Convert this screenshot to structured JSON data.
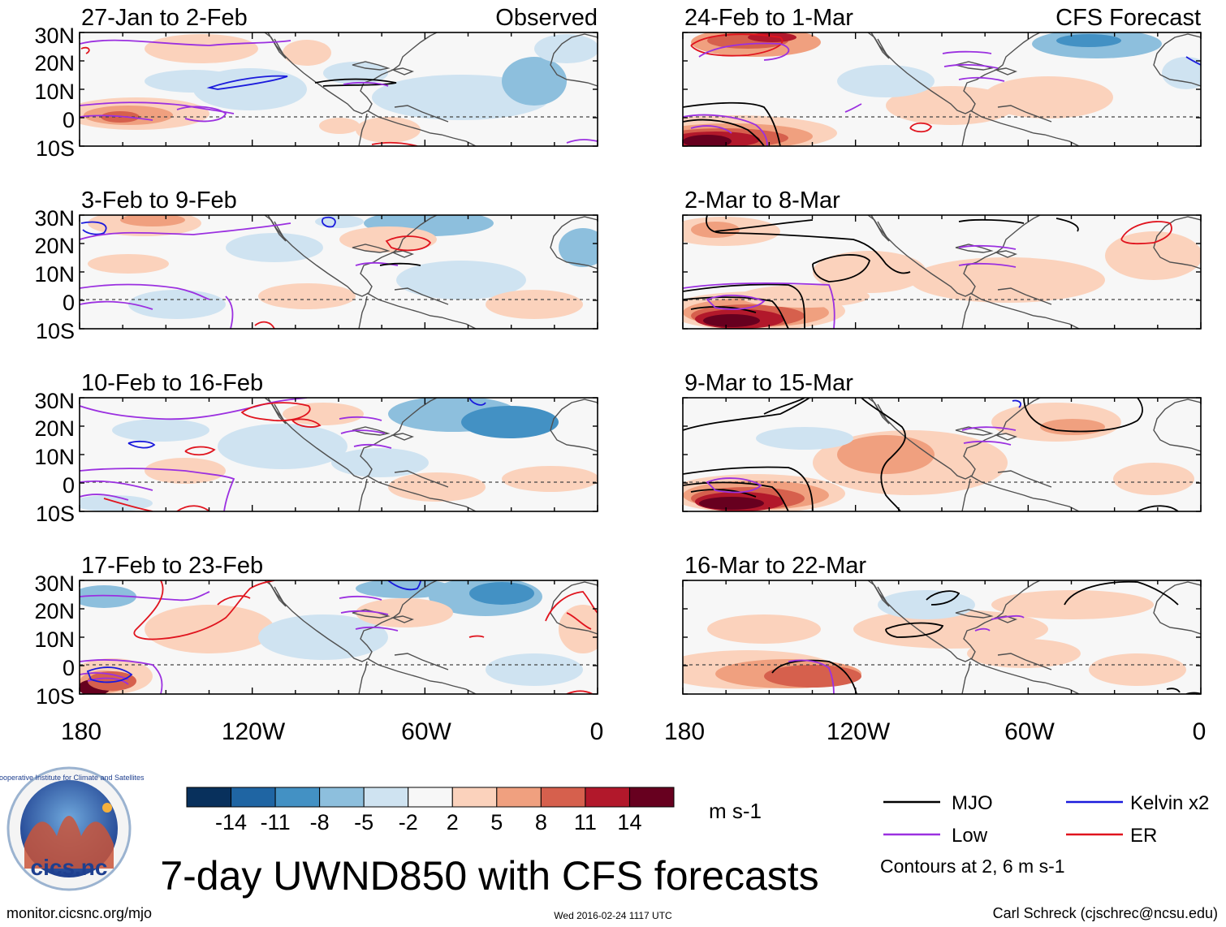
{
  "title": "7-day UWND850 with CFS forecasts",
  "left_column_label": "Observed",
  "right_column_label": "CFS Forecast",
  "panels": [
    {
      "period": "27-Jan to 2-Feb",
      "kind": "observed"
    },
    {
      "period": "3-Feb to 9-Feb",
      "kind": "observed"
    },
    {
      "period": "10-Feb to 16-Feb",
      "kind": "observed"
    },
    {
      "period": "17-Feb to 23-Feb",
      "kind": "observed"
    },
    {
      "period": "24-Feb to 1-Mar",
      "kind": "forecast"
    },
    {
      "period": "2-Mar to 8-Mar",
      "kind": "forecast"
    },
    {
      "period": "9-Mar to 15-Mar",
      "kind": "forecast"
    },
    {
      "period": "16-Mar to 22-Mar",
      "kind": "forecast"
    }
  ],
  "lat_labels": [
    "30N",
    "20N",
    "10N",
    "0",
    "10S"
  ],
  "lon_labels": [
    "180",
    "120W",
    "60W",
    "0"
  ],
  "colorbar": {
    "unit": "m s-1",
    "ticks": [
      "-14",
      "-11",
      "-8",
      "-5",
      "-2",
      "2",
      "5",
      "8",
      "11",
      "14"
    ],
    "colors": [
      "#08305c",
      "#1f65a3",
      "#4391c4",
      "#8dbfdd",
      "#cfe3f1",
      "#f7f7f7",
      "#fbd2bc",
      "#f0a07f",
      "#d6604d",
      "#b2182b",
      "#67001f"
    ]
  },
  "legend": {
    "items": [
      {
        "label": "MJO",
        "color": "#000000"
      },
      {
        "label": "Kelvin x2",
        "color": "#1a1adc"
      },
      {
        "label": "Low",
        "color": "#9b30e0"
      },
      {
        "label": "ER",
        "color": "#e0141e"
      }
    ],
    "contours_note": "Contours at 2, 6 m s-1"
  },
  "logo_text": "cics.nc",
  "logo_ring_text": "Cooperative Institute for Climate and Satellites",
  "footer": {
    "url": "monitor.cicsnc.org/mjo",
    "timestamp": "Wed 2016-02-24 1117 UTC",
    "author": "Carl Schreck (cjschrec@ncsu.edu)"
  }
}
